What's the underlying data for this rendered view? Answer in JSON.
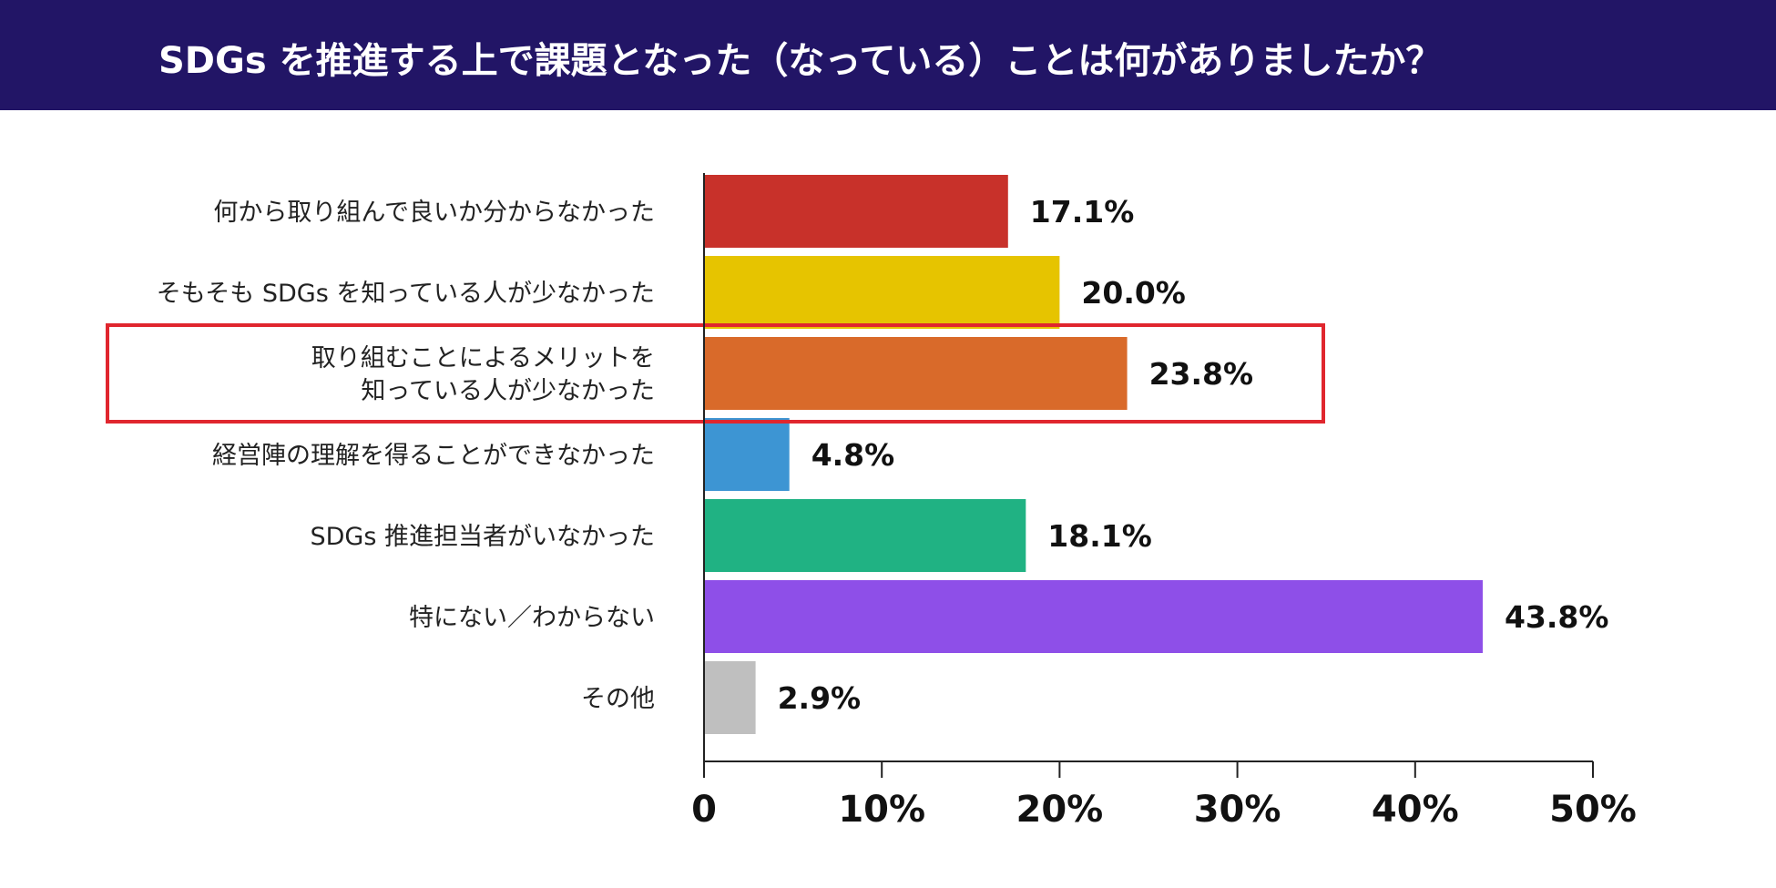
{
  "header": {
    "title": "SDGs を推進する上で課題となった（なっている）ことは何がありましたか？"
  },
  "chart_data": {
    "type": "bar",
    "orientation": "horizontal",
    "title": "SDGs を推進する上で課題となった（なっている）ことは何がありましたか？",
    "categories": [
      [
        "何から取り組んで良いか分からなかった"
      ],
      [
        "そもそも SDGs を知っている人が少なかった"
      ],
      [
        "取り組むことによるメリットを",
        "知っている人が少なかった"
      ],
      [
        "経営陣の理解を得ることができなかった"
      ],
      [
        "SDGs 推進担当者がいなかった"
      ],
      [
        "特にない／わからない"
      ],
      [
        "その他"
      ]
    ],
    "values": [
      17.1,
      20.0,
      23.8,
      4.8,
      18.1,
      43.8,
      2.9
    ],
    "value_labels": [
      "17.1%",
      "20.0%",
      "23.8%",
      "4.8%",
      "18.1%",
      "43.8%",
      "2.9%"
    ],
    "colors": [
      "#C8312A",
      "#E6C400",
      "#D96A2A",
      "#3D95D3",
      "#20B283",
      "#8E4FE8",
      "#BFBFBF"
    ],
    "highlight_index": 2,
    "highlight_color": "#E0262E",
    "xlim": [
      0,
      50
    ],
    "ticks": [
      0,
      10,
      20,
      30,
      40,
      50
    ],
    "tick_labels": [
      "0",
      "10%",
      "20%",
      "30%",
      "40%",
      "50%"
    ],
    "xlabel": "",
    "ylabel": "",
    "grid": false,
    "legend": "none"
  }
}
